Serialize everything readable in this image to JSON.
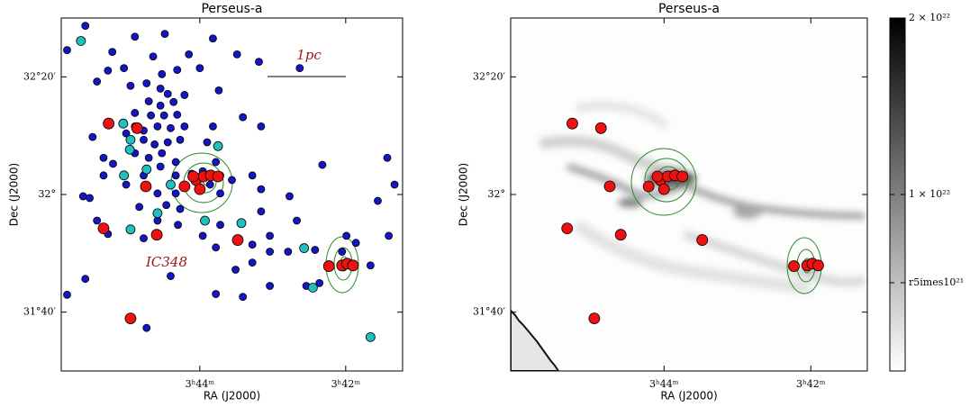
{
  "chart_data": [
    {
      "type": "scatter",
      "title": "Perseus-a",
      "x_label": "RA (J2000)",
      "y_label": "Dec (J2000)",
      "annotations": [
        "1pc",
        "IC348"
      ],
      "xlim": [
        45.9,
        41.22
      ],
      "ylim": [
        31.5,
        32.5
      ],
      "xticks": [
        {
          "value": 44,
          "label": "3ʰ44ᵐ"
        },
        {
          "value": 42,
          "label": "3ʰ42ᵐ"
        }
      ],
      "yticks": [
        {
          "value": 31.6667,
          "label": "31°40′"
        },
        {
          "value": 32,
          "label": "32°"
        },
        {
          "value": 32.3333,
          "label": "32°20′"
        }
      ],
      "series": [
        {
          "color": "#1515c8",
          "x": [
            45.57,
            44.89,
            44.48,
            43.82,
            45.82,
            45.2,
            44.64,
            44.15,
            43.49,
            45.26,
            45.04,
            44.52,
            44.31,
            44.0,
            43.19,
            42.63,
            45.41,
            44.95,
            44.73,
            44.54,
            44.44,
            44.21,
            43.74,
            44.7,
            44.54,
            44.36,
            44.89,
            44.67,
            44.49,
            44.31,
            43.41,
            45.47,
            45.01,
            44.89,
            44.77,
            44.58,
            44.4,
            44.21,
            43.82,
            43.16,
            44.77,
            44.62,
            44.44,
            44.27,
            43.9,
            44.89,
            44.7,
            44.52,
            44.33,
            43.78,
            45.32,
            45.19,
            43.96,
            43.72,
            45.32,
            44.77,
            44.54,
            44.33,
            44.11,
            43.86,
            43.56,
            43.28,
            42.32,
            41.43,
            45.01,
            44.58,
            44.33,
            43.72,
            43.16,
            41.33,
            45.6,
            45.51,
            42.77,
            44.83,
            44.46,
            44.27,
            43.16,
            41.56,
            45.41,
            44.58,
            44.3,
            43.72,
            42.67,
            45.26,
            44.77,
            43.96,
            43.28,
            43.04,
            41.99,
            41.41,
            43.04,
            42.79,
            42.42,
            43.28,
            45.57,
            44.4,
            43.51,
            43.04,
            42.54,
            41.66,
            45.82,
            43.78,
            43.41,
            42.36,
            44.73,
            42.05,
            41.86,
            43.78
          ],
          "y": [
            32.478,
            32.447,
            32.455,
            32.442,
            32.409,
            32.404,
            32.391,
            32.397,
            32.397,
            32.351,
            32.358,
            32.341,
            32.353,
            32.358,
            32.376,
            32.358,
            32.32,
            32.308,
            32.315,
            32.3,
            32.285,
            32.282,
            32.295,
            32.264,
            32.252,
            32.262,
            32.231,
            32.224,
            32.224,
            32.226,
            32.219,
            32.163,
            32.173,
            32.193,
            32.181,
            32.193,
            32.188,
            32.193,
            32.193,
            32.193,
            32.155,
            32.142,
            32.148,
            32.155,
            32.148,
            32.117,
            32.104,
            32.117,
            32.092,
            32.092,
            32.104,
            32.087,
            32.066,
            32.054,
            32.054,
            32.054,
            32.079,
            32.054,
            32.059,
            32.028,
            32.041,
            32.054,
            32.084,
            32.104,
            32.028,
            32.003,
            32.003,
            32.003,
            32.015,
            32.028,
            31.995,
            31.99,
            31.995,
            31.965,
            31.97,
            31.959,
            31.952,
            31.982,
            31.926,
            31.926,
            31.914,
            31.914,
            31.926,
            31.888,
            31.876,
            31.883,
            31.858,
            31.883,
            31.883,
            31.883,
            31.838,
            31.838,
            31.843,
            31.807,
            31.761,
            31.769,
            31.787,
            31.741,
            31.741,
            31.799,
            31.716,
            31.718,
            31.71,
            31.749,
            31.622,
            31.838,
            31.863,
            31.85
          ],
          "size": 4
        },
        {
          "color": "#20c0c0",
          "x": [
            45.63,
            45.05,
            44.95,
            44.96,
            45.04,
            44.73,
            44.4,
            44.58,
            44.95,
            43.93,
            43.43,
            43.75,
            42.57,
            42.45,
            41.66
          ],
          "y": [
            32.435,
            32.201,
            32.155,
            32.127,
            32.054,
            32.071,
            32.028,
            31.947,
            31.901,
            31.926,
            31.919,
            32.137,
            31.848,
            31.736,
            31.596
          ],
          "size": 5
        },
        {
          "color": "#ee1111",
          "x": [
            45.25,
            44.86,
            44.74,
            45.32,
            44.59,
            43.48,
            44.95,
            44.21,
            44.05,
            44.0,
            43.95,
            43.85,
            43.75,
            44.09,
            42.23,
            42.05,
            41.98,
            41.9
          ],
          "y": [
            32.201,
            32.188,
            32.023,
            31.904,
            31.886,
            31.871,
            31.649,
            32.023,
            32.041,
            32.015,
            32.051,
            32.054,
            32.051,
            32.051,
            31.797,
            31.799,
            31.804,
            31.799
          ],
          "size": 6
        }
      ]
    },
    {
      "type": "scatter",
      "title": "Perseus-a",
      "x_label": "RA (J2000)",
      "y_label": "Dec (J2000)",
      "xlim": [
        46.09,
        41.23
      ],
      "ylim": [
        31.5,
        32.5
      ],
      "xticks": [
        {
          "value": 44,
          "label": "3ʰ44ᵐ"
        },
        {
          "value": 42,
          "label": "3ʰ42ᵐ"
        }
      ],
      "yticks": [
        {
          "value": 31.6667,
          "label": "31°40′"
        },
        {
          "value": 32,
          "label": "32°"
        },
        {
          "value": 32.3333,
          "label": "32°20′"
        }
      ],
      "colorbar": {
        "lim": [
          0,
          2e+22
        ],
        "colors": [
          "#ffffff",
          "#000000"
        ],
        "ticks": [
          {
            "value": 5e+21,
            "label": "r5imes10²¹"
          },
          {
            "value": 1e+22,
            "label": "1 × 10²²"
          },
          {
            "value": 2e+22,
            "label": "2 × 10²²"
          }
        ]
      },
      "series": [
        {
          "color": "#ee1111",
          "x": [
            45.25,
            44.86,
            44.74,
            45.32,
            44.59,
            43.48,
            44.95,
            44.21,
            44.05,
            44.0,
            43.95,
            43.85,
            43.75,
            44.09,
            42.23,
            42.05,
            41.98,
            41.9
          ],
          "y": [
            32.201,
            32.188,
            32.023,
            31.904,
            31.886,
            31.871,
            31.649,
            32.023,
            32.041,
            32.015,
            32.051,
            32.054,
            32.051,
            32.051,
            31.797,
            31.799,
            31.804,
            31.799
          ],
          "size": 6
        }
      ]
    }
  ]
}
